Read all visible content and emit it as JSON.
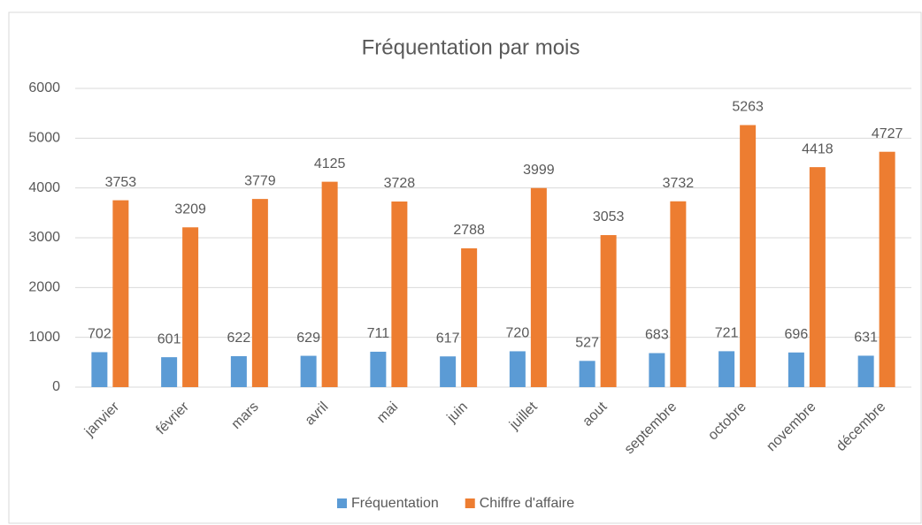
{
  "chart_data": {
    "type": "bar",
    "title": "Fréquentation par mois",
    "categories": [
      "janvier",
      "février",
      "mars",
      "avril",
      "mai",
      "juin",
      "juillet",
      "aout",
      "septembre",
      "octobre",
      "novembre",
      "décembre"
    ],
    "series": [
      {
        "name": "Fréquentation",
        "color": "#5b9bd5",
        "values": [
          702,
          601,
          622,
          629,
          711,
          617,
          720,
          527,
          683,
          721,
          696,
          631
        ]
      },
      {
        "name": "Chiffre d'affaire",
        "color": "#ed7d31",
        "values": [
          3753,
          3209,
          3779,
          4125,
          3728,
          2788,
          3999,
          3053,
          3732,
          5263,
          4418,
          4727
        ]
      }
    ],
    "ylim": [
      0,
      6000
    ],
    "yticks": [
      0,
      1000,
      2000,
      3000,
      4000,
      5000,
      6000
    ],
    "grid": true,
    "legend": "bottom",
    "data_labels": true
  }
}
